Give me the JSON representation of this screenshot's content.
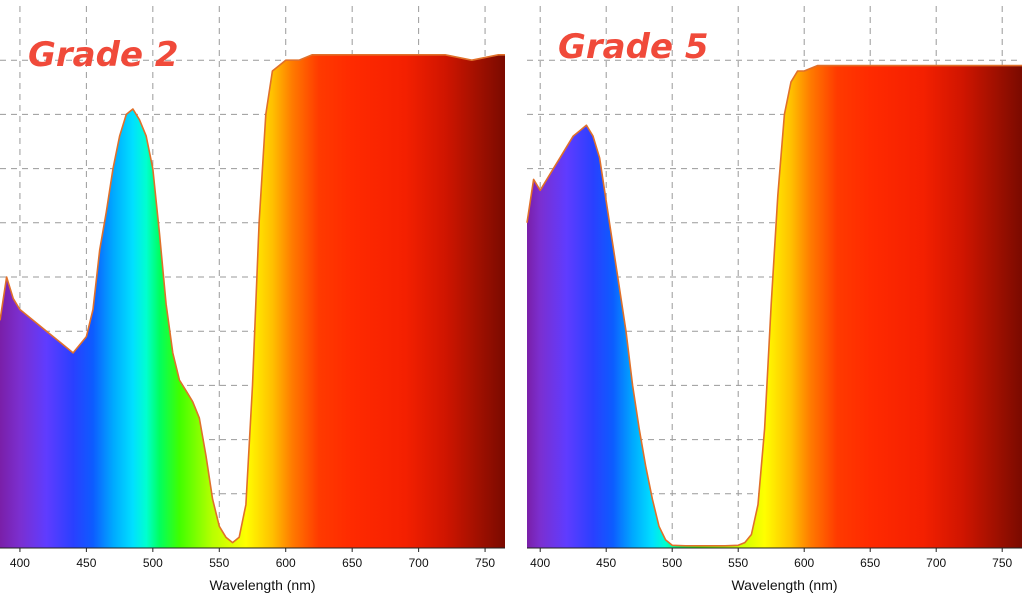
{
  "colors": {
    "title": "#f04a3a",
    "outline": "#e0702a",
    "grid": "#9a9a9a",
    "axis": "#222222",
    "tick_text": "#111111"
  },
  "chart_data": [
    {
      "type": "area",
      "title": "Grade 2",
      "xlabel": "Wavelength (nm)",
      "ylabel": "",
      "xlim": [
        385,
        765
      ],
      "ylim": [
        0,
        100
      ],
      "xticks": [
        "400",
        "450",
        "500",
        "550",
        "600",
        "650",
        "700",
        "750"
      ],
      "grid": true,
      "fill": "visible-spectrum",
      "series": [
        {
          "x": [
            385,
            390,
            395,
            400,
            410,
            420,
            430,
            440,
            450,
            455,
            460,
            465,
            470,
            475,
            480,
            485,
            490,
            495,
            500,
            505,
            510,
            515,
            520,
            525,
            530,
            535,
            540,
            545,
            550,
            555,
            560,
            565,
            570,
            575,
            580,
            585,
            590,
            595,
            600,
            610,
            620,
            640,
            660,
            680,
            700,
            720,
            740,
            760,
            765
          ],
          "y": [
            42,
            50,
            46,
            44,
            42,
            40,
            38,
            36,
            39,
            44,
            55,
            62,
            70,
            76,
            80,
            81,
            79,
            76,
            70,
            58,
            45,
            36,
            31,
            29,
            27,
            24,
            17,
            9,
            4,
            2,
            1,
            2,
            8,
            30,
            60,
            80,
            88,
            89,
            90,
            90,
            91,
            91,
            91,
            91,
            91,
            91,
            90,
            91,
            91
          ]
        }
      ]
    },
    {
      "type": "area",
      "title": "Grade 5",
      "xlabel": "Wavelength (nm)",
      "ylabel": "",
      "xlim": [
        390,
        765
      ],
      "ylim": [
        0,
        100
      ],
      "xticks": [
        "400",
        "450",
        "500",
        "550",
        "600",
        "650",
        "700",
        "750"
      ],
      "grid": true,
      "fill": "visible-spectrum",
      "series": [
        {
          "x": [
            390,
            395,
            400,
            405,
            410,
            415,
            420,
            425,
            430,
            435,
            440,
            445,
            450,
            455,
            460,
            465,
            470,
            475,
            480,
            485,
            490,
            495,
            500,
            510,
            520,
            530,
            540,
            550,
            555,
            560,
            565,
            570,
            575,
            580,
            585,
            590,
            595,
            600,
            610,
            620,
            640,
            660,
            680,
            700,
            720,
            740,
            760,
            765
          ],
          "y": [
            60,
            68,
            66,
            68,
            70,
            72,
            74,
            76,
            77,
            78,
            76,
            72,
            64,
            56,
            48,
            40,
            30,
            22,
            15,
            9,
            4,
            1.5,
            0.5,
            0.4,
            0.4,
            0.4,
            0.4,
            0.5,
            1,
            2.5,
            8,
            22,
            45,
            65,
            80,
            86,
            88,
            88,
            89,
            89,
            89,
            89,
            89,
            89,
            89,
            89,
            89,
            89
          ]
        }
      ]
    }
  ]
}
